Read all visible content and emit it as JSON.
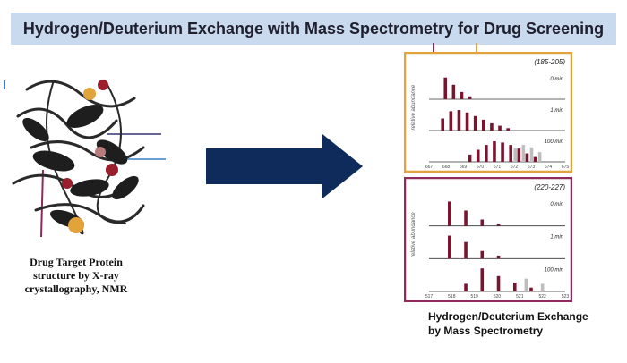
{
  "title": "Hydrogen/Deuterium Exchange with Mass Spectrometry for Drug Screening",
  "protein_caption": {
    "line1": "Drug Target Protein",
    "line2": "structure by X-ray",
    "line3": "crystallography, NMR"
  },
  "ms_caption": {
    "line1": "Hydrogen/Deuterium Exchange",
    "line2": "by Mass Spectrometry"
  },
  "panels": [
    {
      "range_label": "(185-205)",
      "frame_color": "#e3a33c",
      "y_axis_label": "relative abundance",
      "traces": [
        "0 min",
        "1 min",
        "100 min"
      ],
      "x_ticks": [
        "667",
        "668",
        "669",
        "670",
        "671",
        "672",
        "673",
        "674",
        "675"
      ]
    },
    {
      "range_label": "(220-227)",
      "frame_color": "#8e2a5c",
      "y_axis_label": "relative abundance",
      "traces": [
        "0 min",
        "1 min",
        "100 min"
      ],
      "x_ticks": [
        "517",
        "518",
        "519",
        "520",
        "521",
        "522",
        "523"
      ]
    }
  ],
  "colors": {
    "title_bg": "#c9d9ee",
    "arrow": "#0f2b5b",
    "peak": "#7a1530",
    "peak_grey": "#bdbdbd"
  }
}
